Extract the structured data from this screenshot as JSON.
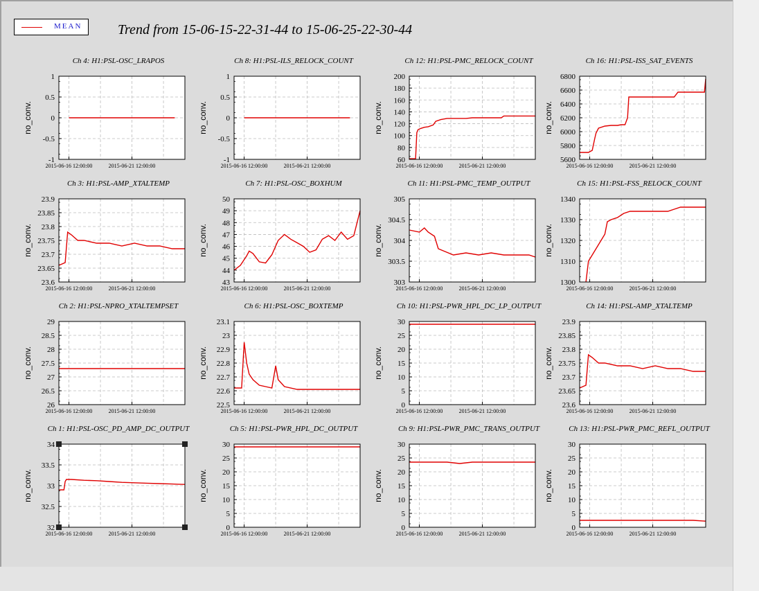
{
  "header": {
    "legend_label": "MEAN",
    "title": "Trend from 15-06-15-22-31-44 to 15-06-25-22-30-44"
  },
  "colors": {
    "series": "#e00000",
    "legend_text": "#1a1acc",
    "grid": "#bbbbbb"
  },
  "chart_data": [
    {
      "title": "Ch 4: H1:PSL-OSC_LRAPOS",
      "type": "line",
      "ylabel": "no_conv.",
      "ylim": [
        -1,
        1
      ],
      "yticks": [
        "1",
        "0.5",
        "0",
        "-0.5",
        "-1"
      ],
      "xticks": [
        "2015-06-16 12:00:00",
        "2015-06-21 12:00:00"
      ],
      "x": [
        0.08,
        0.92
      ],
      "y": [
        0,
        0
      ]
    },
    {
      "title": "Ch 8: H1:PSL-ILS_RELOCK_COUNT",
      "type": "line",
      "ylabel": "no_conv.",
      "ylim": [
        -1,
        1
      ],
      "yticks": [
        "1",
        "0.5",
        "0",
        "-0.5",
        "-1"
      ],
      "xticks": [
        "2015-06-16 12:00:00",
        "2015-06-21 12:00:00"
      ],
      "x": [
        0.08,
        0.92
      ],
      "y": [
        0,
        0
      ]
    },
    {
      "title": "Ch 12: H1:PSL-PMC_RELOCK_COUNT",
      "type": "line",
      "ylabel": "no_conv.",
      "ylim": [
        60,
        200
      ],
      "yticks": [
        "200",
        "180",
        "160",
        "140",
        "120",
        "100",
        "80",
        "60"
      ],
      "xticks": [
        "2015-06-16 12:00:00",
        "2015-06-21 12:00:00"
      ],
      "x": [
        0,
        0.05,
        0.06,
        0.07,
        0.09,
        0.12,
        0.15,
        0.19,
        0.21,
        0.25,
        0.3,
        0.45,
        0.5,
        0.6,
        0.73,
        0.75,
        1.0
      ],
      "y": [
        61,
        61,
        105,
        110,
        112,
        114,
        115,
        118,
        124,
        127,
        129,
        129,
        130,
        130,
        130,
        133,
        133
      ]
    },
    {
      "title": "Ch 16: H1:PSL-ISS_SAT_EVENTS",
      "type": "line",
      "ylabel": "no_conv.",
      "ylim": [
        5600,
        6800
      ],
      "yticks": [
        "6800",
        "6600",
        "6400",
        "6200",
        "6000",
        "5800",
        "5600"
      ],
      "xticks": [
        "2015-06-16 12:00:00",
        "2015-06-21 12:00:00"
      ],
      "x": [
        0,
        0.07,
        0.1,
        0.12,
        0.13,
        0.15,
        0.2,
        0.25,
        0.3,
        0.33,
        0.36,
        0.38,
        0.39,
        0.45,
        0.6,
        0.75,
        0.78,
        0.99,
        1.0
      ],
      "y": [
        5700,
        5700,
        5730,
        5900,
        5980,
        6050,
        6080,
        6090,
        6090,
        6100,
        6100,
        6200,
        6500,
        6500,
        6500,
        6500,
        6570,
        6570,
        6760
      ]
    },
    {
      "title": "Ch 3: H1:PSL-AMP_XTALTEMP",
      "type": "line",
      "ylabel": "no_conv.",
      "ylim": [
        23.6,
        23.9
      ],
      "yticks": [
        "23.9",
        "23.85",
        "23.8",
        "23.75",
        "23.7",
        "23.65",
        "23.6"
      ],
      "xticks": [
        "2015-06-16 12:00:00",
        "2015-06-21 12:00:00"
      ],
      "x": [
        0,
        0.05,
        0.07,
        0.1,
        0.15,
        0.2,
        0.3,
        0.4,
        0.5,
        0.6,
        0.7,
        0.8,
        0.9,
        1.0
      ],
      "y": [
        23.66,
        23.67,
        23.78,
        23.77,
        23.75,
        23.75,
        23.74,
        23.74,
        23.73,
        23.74,
        23.73,
        23.73,
        23.72,
        23.72
      ]
    },
    {
      "title": "Ch 7: H1:PSL-OSC_BOXHUM",
      "type": "line",
      "ylabel": "no_conv.",
      "ylim": [
        43,
        50
      ],
      "yticks": [
        "50",
        "49",
        "48",
        "47",
        "46",
        "45",
        "44",
        "43"
      ],
      "xticks": [
        "2015-06-16 12:00:00",
        "2015-06-21 12:00:00"
      ],
      "x": [
        0,
        0.05,
        0.1,
        0.12,
        0.15,
        0.2,
        0.25,
        0.3,
        0.35,
        0.4,
        0.45,
        0.5,
        0.55,
        0.6,
        0.65,
        0.7,
        0.75,
        0.8,
        0.85,
        0.9,
        0.95,
        1.0
      ],
      "y": [
        44.0,
        44.4,
        45.2,
        45.6,
        45.4,
        44.7,
        44.6,
        45.3,
        46.5,
        47.0,
        46.6,
        46.3,
        46.0,
        45.5,
        45.7,
        46.6,
        46.9,
        46.5,
        47.2,
        46.6,
        46.9,
        49.0
      ]
    },
    {
      "title": "Ch 11: H1:PSL-PMC_TEMP_OUTPUT",
      "type": "line",
      "ylabel": "no_conv.",
      "ylim": [
        303,
        305
      ],
      "yticks": [
        "305",
        "304.5",
        "304",
        "303.5",
        "303"
      ],
      "xticks": [
        "2015-06-16 12:00:00",
        "2015-06-21 12:00:00"
      ],
      "x": [
        0,
        0.08,
        0.12,
        0.15,
        0.2,
        0.23,
        0.27,
        0.35,
        0.45,
        0.55,
        0.65,
        0.75,
        0.85,
        0.95,
        1.0
      ],
      "y": [
        304.25,
        304.2,
        304.3,
        304.2,
        304.1,
        303.8,
        303.75,
        303.65,
        303.7,
        303.65,
        303.7,
        303.65,
        303.65,
        303.65,
        303.6
      ]
    },
    {
      "title": "Ch 15: H1:PSL-FSS_RELOCK_COUNT",
      "type": "line",
      "ylabel": "no_conv.",
      "ylim": [
        1300,
        1340
      ],
      "yticks": [
        "1340",
        "1330",
        "1320",
        "1310",
        "1300"
      ],
      "xticks": [
        "2015-06-16 12:00:00",
        "2015-06-21 12:00:00"
      ],
      "x": [
        0.05,
        0.07,
        0.1,
        0.15,
        0.2,
        0.22,
        0.25,
        0.3,
        0.35,
        0.4,
        0.5,
        0.6,
        0.7,
        0.75,
        0.8,
        1.0
      ],
      "y": [
        1300,
        1310,
        1313,
        1318,
        1323,
        1329,
        1330,
        1331,
        1333,
        1334,
        1334,
        1334,
        1334,
        1335,
        1336,
        1336
      ]
    },
    {
      "title": "Ch 2: H1:PSL-NPRO_XTALTEMPSET",
      "type": "line",
      "ylabel": "no_conv.",
      "ylim": [
        26,
        29
      ],
      "yticks": [
        "29",
        "28.5",
        "28",
        "27.5",
        "27",
        "26.5",
        "26"
      ],
      "xticks": [
        "2015-06-16 12:00:00",
        "2015-06-21 12:00:00"
      ],
      "x": [
        0,
        0.05,
        0.06,
        0.2,
        0.4,
        0.6,
        0.75,
        0.8,
        1.0
      ],
      "y": [
        27.3,
        27.3,
        27.3,
        27.3,
        27.3,
        27.3,
        27.3,
        27.3,
        27.3
      ]
    },
    {
      "title": "Ch 6: H1:PSL-OSC_BOXTEMP",
      "type": "line",
      "ylabel": "no_conv.",
      "ylim": [
        22.5,
        23.1
      ],
      "yticks": [
        "23.1",
        "23",
        "22.9",
        "22.8",
        "22.7",
        "22.6",
        "22.5"
      ],
      "xticks": [
        "2015-06-16 12:00:00",
        "2015-06-21 12:00:00"
      ],
      "x": [
        0,
        0.06,
        0.08,
        0.1,
        0.12,
        0.15,
        0.2,
        0.25,
        0.3,
        0.33,
        0.35,
        0.4,
        0.5,
        0.7,
        1.0
      ],
      "y": [
        22.62,
        22.62,
        22.95,
        22.8,
        22.72,
        22.68,
        22.64,
        22.63,
        22.62,
        22.78,
        22.68,
        22.63,
        22.61,
        22.61,
        22.61
      ]
    },
    {
      "title": "Ch 10: H1:PSL-PWR_HPL_DC_LP_OUTPUT",
      "type": "line",
      "ylabel": "no_conv.",
      "ylim": [
        0,
        30
      ],
      "yticks": [
        "30",
        "25",
        "20",
        "15",
        "10",
        "5",
        "0"
      ],
      "xticks": [
        "2015-06-16 12:00:00",
        "2015-06-21 12:00:00"
      ],
      "x": [
        0,
        0.3,
        0.5,
        0.7,
        1.0
      ],
      "y": [
        29,
        29,
        29,
        29,
        29
      ]
    },
    {
      "title": "Ch 14: H1:PSL-AMP_XTALTEMP",
      "type": "line",
      "ylabel": "no_conv.",
      "ylim": [
        23.6,
        23.9
      ],
      "yticks": [
        "23.9",
        "23.85",
        "23.8",
        "23.75",
        "23.7",
        "23.65",
        "23.6"
      ],
      "xticks": [
        "2015-06-16 12:00:00",
        "2015-06-21 12:00:00"
      ],
      "x": [
        0,
        0.05,
        0.07,
        0.1,
        0.15,
        0.2,
        0.3,
        0.4,
        0.5,
        0.6,
        0.7,
        0.8,
        0.9,
        1.0
      ],
      "y": [
        23.66,
        23.67,
        23.78,
        23.77,
        23.75,
        23.75,
        23.74,
        23.74,
        23.73,
        23.74,
        23.73,
        23.73,
        23.72,
        23.72
      ]
    },
    {
      "title": "Ch 1: H1:PSL-OSC_PD_AMP_DC_OUTPUT",
      "type": "line",
      "ylabel": "no_conv.",
      "ylim": [
        32,
        34
      ],
      "yticks": [
        "34",
        "33.5",
        "33",
        "32.5",
        "32"
      ],
      "xticks": [
        "2015-06-16 12:00:00",
        "2015-06-21 12:00:00"
      ],
      "x": [
        0,
        0.04,
        0.05,
        0.06,
        0.1,
        0.2,
        0.3,
        0.4,
        0.5,
        0.6,
        0.7,
        0.8,
        0.9,
        1.0
      ],
      "y": [
        32.9,
        32.9,
        33.1,
        33.15,
        33.15,
        33.13,
        33.12,
        33.1,
        33.08,
        33.07,
        33.06,
        33.05,
        33.04,
        33.03
      ]
    },
    {
      "title": "Ch 5: H1:PSL-PWR_HPL_DC_OUTPUT",
      "type": "line",
      "ylabel": "no_conv.",
      "ylim": [
        0,
        30
      ],
      "yticks": [
        "30",
        "25",
        "20",
        "15",
        "10",
        "5",
        "0"
      ],
      "xticks": [
        "2015-06-16 12:00:00",
        "2015-06-21 12:00:00"
      ],
      "x": [
        0,
        0.3,
        0.5,
        0.7,
        1.0
      ],
      "y": [
        29,
        29,
        29,
        29,
        29
      ]
    },
    {
      "title": "Ch 9: H1:PSL-PWR_PMC_TRANS_OUTPUT",
      "type": "line",
      "ylabel": "no_conv.",
      "ylim": [
        0,
        30
      ],
      "yticks": [
        "30",
        "25",
        "20",
        "15",
        "10",
        "5",
        "0"
      ],
      "xticks": [
        "2015-06-16 12:00:00",
        "2015-06-21 12:00:00"
      ],
      "x": [
        0,
        0.05,
        0.1,
        0.2,
        0.3,
        0.4,
        0.5,
        0.6,
        0.8,
        1.0
      ],
      "y": [
        23.5,
        23.5,
        23.5,
        23.5,
        23.5,
        23,
        23.5,
        23.5,
        23.5,
        23.5
      ]
    },
    {
      "title": "Ch 13: H1:PSL-PWR_PMC_REFL_OUTPUT",
      "type": "line",
      "ylabel": "no_conv.",
      "ylim": [
        0,
        30
      ],
      "yticks": [
        "30",
        "25",
        "20",
        "15",
        "10",
        "5",
        "0"
      ],
      "xticks": [
        "2015-06-16 12:00:00",
        "2015-06-21 12:00:00"
      ],
      "x": [
        0,
        0.05,
        0.1,
        0.2,
        0.3,
        0.4,
        0.5,
        0.6,
        0.7,
        0.8,
        0.9,
        1.0
      ],
      "y": [
        2.5,
        2.5,
        2.5,
        2.5,
        2.5,
        2.5,
        2.5,
        2.5,
        2.5,
        2.5,
        2.5,
        2.2
      ]
    }
  ]
}
